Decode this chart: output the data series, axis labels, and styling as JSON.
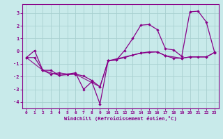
{
  "xlabel": "Windchill (Refroidissement éolien,°C)",
  "xlim": [
    -0.5,
    23.5
  ],
  "ylim": [
    -4.5,
    3.7
  ],
  "yticks": [
    -4,
    -3,
    -2,
    -1,
    0,
    1,
    2,
    3
  ],
  "xticks": [
    0,
    1,
    2,
    3,
    4,
    5,
    6,
    7,
    8,
    9,
    10,
    11,
    12,
    13,
    14,
    15,
    16,
    17,
    18,
    19,
    20,
    21,
    22,
    23
  ],
  "bg_color": "#c8eaea",
  "grid_color": "#a8d0d0",
  "line_color": "#880088",
  "curve1_x": [
    0,
    1,
    2,
    3,
    4,
    5,
    6,
    7,
    8,
    9,
    10,
    11,
    12,
    13,
    14,
    15,
    16,
    17,
    18,
    19,
    20,
    21,
    22,
    23
  ],
  "curve1_y": [
    -0.5,
    0.05,
    -1.5,
    -1.8,
    -1.7,
    -1.8,
    -1.7,
    -3.0,
    -2.4,
    -4.15,
    -0.75,
    -0.7,
    0.05,
    1.0,
    2.05,
    2.1,
    1.7,
    0.2,
    0.1,
    -0.4,
    3.1,
    3.15,
    2.3,
    -0.05
  ],
  "curve2_x": [
    0,
    1,
    2,
    3,
    4,
    5,
    6,
    7,
    8,
    9,
    10,
    11,
    12,
    13,
    14,
    15,
    16,
    17,
    18,
    19,
    20,
    21,
    22,
    23
  ],
  "curve2_y": [
    -0.5,
    -0.5,
    -1.5,
    -1.5,
    -1.9,
    -1.8,
    -1.8,
    -1.95,
    -2.3,
    -2.8,
    -0.75,
    -0.65,
    -0.5,
    -0.3,
    -0.15,
    -0.05,
    -0.05,
    -0.35,
    -0.55,
    -0.55,
    -0.45,
    -0.45,
    -0.45,
    -0.1
  ],
  "curve3_x": [
    0,
    2,
    4,
    6,
    9,
    10,
    14,
    16,
    17,
    19,
    20,
    22,
    23
  ],
  "curve3_y": [
    -0.5,
    -1.5,
    -1.9,
    -1.8,
    -2.8,
    -0.75,
    -0.15,
    -0.05,
    -0.35,
    -0.55,
    -0.45,
    -0.45,
    -0.1
  ]
}
